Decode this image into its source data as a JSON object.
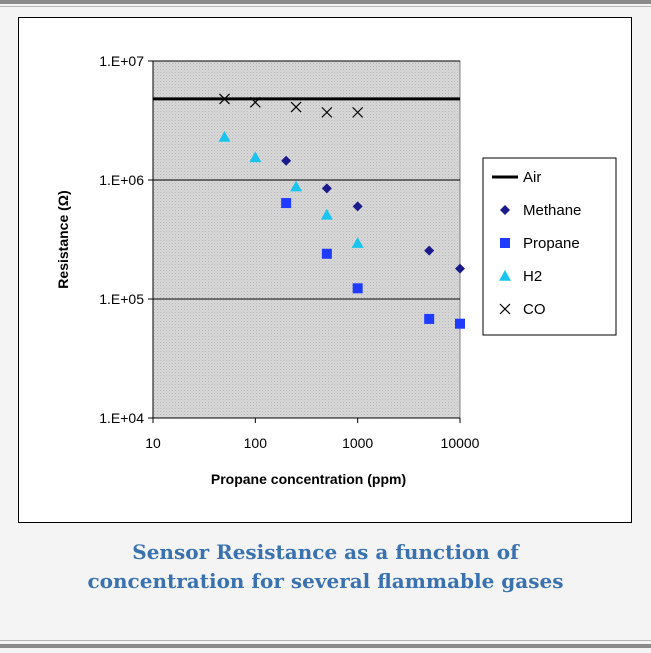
{
  "chart_data": {
    "type": "scatter",
    "title": "",
    "xlabel": "Propane concentration (ppm)",
    "ylabel": "Resistance (Ω)",
    "x_scale": "log",
    "y_scale": "log",
    "xlim": [
      10,
      10000
    ],
    "ylim": [
      10000,
      10000000
    ],
    "x_ticks": [
      {
        "value": 10,
        "label": "10"
      },
      {
        "value": 100,
        "label": "100"
      },
      {
        "value": 1000,
        "label": "1000"
      },
      {
        "value": 10000,
        "label": "10000"
      }
    ],
    "y_ticks": [
      {
        "value": 10000,
        "label": "1.E+04"
      },
      {
        "value": 100000,
        "label": "1.E+05"
      },
      {
        "value": 1000000,
        "label": "1.E+06"
      },
      {
        "value": 10000000,
        "label": "1.E+07"
      }
    ],
    "grid": "horizontal major gridlines",
    "plot_background": "#c0c0c0",
    "legend_position": "right",
    "series": [
      {
        "name": "Air",
        "kind": "line",
        "color": "#000000",
        "points": [
          [
            10,
            4800000
          ],
          [
            10000,
            4800000
          ]
        ]
      },
      {
        "name": "Methane",
        "marker": "diamond",
        "color": "#1a1a8c",
        "points": [
          [
            200,
            1450000
          ],
          [
            500,
            850000
          ],
          [
            1000,
            600000
          ],
          [
            5000,
            255000
          ],
          [
            10000,
            180000
          ]
        ]
      },
      {
        "name": "Propane",
        "marker": "square",
        "color": "#1f3bff",
        "points": [
          [
            200,
            640000
          ],
          [
            500,
            240000
          ],
          [
            1000,
            123000
          ],
          [
            5000,
            68000
          ],
          [
            10000,
            62000
          ]
        ]
      },
      {
        "name": "H2",
        "marker": "triangle",
        "color": "#19c5ee",
        "points": [
          [
            50,
            2300000
          ],
          [
            100,
            1550000
          ],
          [
            250,
            880000
          ],
          [
            500,
            510000
          ],
          [
            1000,
            295000
          ]
        ]
      },
      {
        "name": "CO",
        "marker": "x",
        "color": "#000000",
        "points": [
          [
            50,
            4800000
          ],
          [
            100,
            4500000
          ],
          [
            250,
            4100000
          ],
          [
            500,
            3700000
          ],
          [
            1000,
            3700000
          ]
        ]
      }
    ]
  },
  "caption": {
    "line1": "Sensor Resistance as a function of",
    "line2": "concentration for several flammable gases"
  }
}
